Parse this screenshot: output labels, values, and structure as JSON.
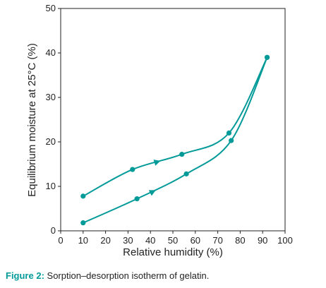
{
  "chart_data": {
    "type": "line",
    "xlabel": "Relative humidity (%)",
    "ylabel": "Equilibrium moisture at 25°C (%)",
    "xlim": [
      0,
      100
    ],
    "ylim": [
      0,
      50
    ],
    "x_ticks": [
      "0",
      "10",
      "20",
      "30",
      "40",
      "50",
      "60",
      "70",
      "80",
      "90",
      "100"
    ],
    "y_ticks": [
      "0",
      "10",
      "20",
      "30",
      "40",
      "50"
    ],
    "grid": false,
    "legend": "none",
    "line_color": "#009a98",
    "series": [
      {
        "points": [
          [
            10,
            7.8
          ],
          [
            32,
            13.8
          ],
          [
            54,
            17.2
          ],
          [
            75,
            22
          ],
          [
            92,
            39
          ]
        ],
        "arrow": {
          "x": 43,
          "y": 15.5
        }
      },
      {
        "points": [
          [
            10,
            1.8
          ],
          [
            34,
            7.2
          ],
          [
            56,
            12.8
          ],
          [
            76,
            20.3
          ],
          [
            92,
            39
          ]
        ],
        "arrow": {
          "x": 41,
          "y": 8.8
        }
      }
    ]
  },
  "caption": {
    "label": "Figure 2:",
    "text": "Sorption–desorption isotherm of gelatin."
  }
}
